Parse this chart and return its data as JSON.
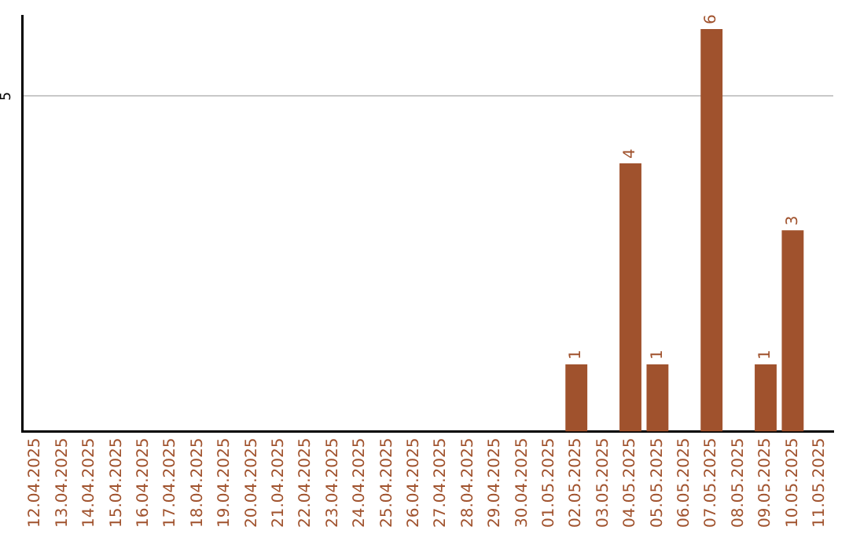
{
  "chart_data": {
    "type": "bar",
    "categories": [
      "12.04.2025",
      "13.04.2025",
      "14.04.2025",
      "15.04.2025",
      "16.04.2025",
      "17.04.2025",
      "18.04.2025",
      "19.04.2025",
      "20.04.2025",
      "21.04.2025",
      "22.04.2025",
      "23.04.2025",
      "24.04.2025",
      "25.04.2025",
      "26.04.2025",
      "27.04.2025",
      "28.04.2025",
      "29.04.2025",
      "30.04.2025",
      "01.05.2025",
      "02.05.2025",
      "03.05.2025",
      "04.05.2025",
      "05.05.2025",
      "06.05.2025",
      "07.05.2025",
      "08.05.2025",
      "09.05.2025",
      "10.05.2025",
      "11.05.2025"
    ],
    "values": [
      null,
      null,
      null,
      null,
      null,
      null,
      null,
      null,
      null,
      null,
      null,
      null,
      null,
      null,
      null,
      null,
      null,
      null,
      null,
      null,
      1,
      null,
      4,
      1,
      null,
      6,
      null,
      1,
      3,
      null
    ],
    "data_labels": true,
    "color": "#a0522d",
    "ylim": [
      0,
      6.2
    ],
    "yticks": [
      5
    ],
    "grid": "y",
    "legend": false
  }
}
